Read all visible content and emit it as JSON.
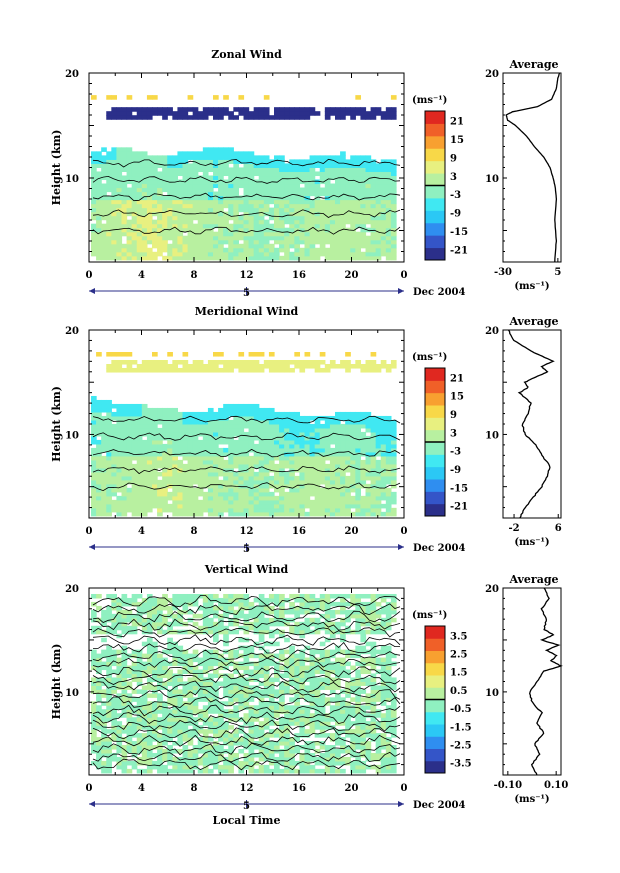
{
  "chart_data": [
    {
      "type": "heatmap",
      "title": "Zonal Wind",
      "ylabel": "Height (km)",
      "xlabel": "",
      "x_ticks": [
        "0",
        "4",
        "8",
        "12",
        "16",
        "20",
        "0"
      ],
      "day_label": "5",
      "month_label": "Dec 2004",
      "xlim": [
        0,
        24
      ],
      "ylim": [
        2,
        20
      ],
      "y_ticks": [
        "10",
        "20"
      ],
      "colorbar": {
        "unit_label": "(ms⁻¹)",
        "ticks": [
          "21",
          "15",
          "9",
          "3",
          "-3",
          "-9",
          "-15",
          "-21"
        ],
        "range": [
          -24,
          24
        ],
        "colors": [
          "#2b2f8a",
          "#3455c8",
          "#2f8ef0",
          "#2bc8f5",
          "#40e8f2",
          "#8ff0c0",
          "#b8f0a0",
          "#e8f080",
          "#f8d848",
          "#f8a030",
          "#f06028",
          "#e02820"
        ]
      },
      "field_description": {
        "data_top_km": [
          12.6,
          13.0,
          12.4,
          12.0,
          12.8,
          13.1,
          12.5,
          12.2,
          11.8,
          12.1,
          12.4,
          12.0,
          11.6
        ],
        "values_low": [
          1,
          3,
          5,
          4,
          2,
          1,
          0,
          -1,
          0,
          1,
          2,
          1,
          0
        ],
        "values_mid": [
          -3,
          -2,
          -1,
          -2,
          -3,
          -4,
          -3,
          -2,
          -3,
          -4,
          -3,
          -2,
          -3
        ],
        "jet_level_km": 16.2,
        "jet_value": -22
      },
      "average_profile": {
        "title": "Average",
        "x_ticks": [
          "-30",
          "5"
        ],
        "xlim": [
          -30,
          7
        ],
        "unit_label": "(ms⁻¹)",
        "y_ticks": [
          "10",
          "20"
        ],
        "height_km": [
          2,
          4,
          6,
          8,
          9,
          10,
          11,
          12,
          13,
          14,
          15,
          15.5,
          16,
          16.3,
          16.8,
          17.5,
          18.5,
          19.5,
          20
        ],
        "value": [
          3,
          4,
          3,
          4,
          3.5,
          2,
          0,
          -4,
          -10,
          -15,
          -22,
          -27,
          -28,
          -24,
          -8,
          1,
          4,
          5,
          6
        ]
      }
    },
    {
      "type": "heatmap",
      "title": "Meridional Wind",
      "ylabel": "Height (km)",
      "xlabel": "",
      "x_ticks": [
        "0",
        "4",
        "8",
        "12",
        "16",
        "20",
        "0"
      ],
      "day_label": "5",
      "month_label": "Dec 2004",
      "xlim": [
        0,
        24
      ],
      "ylim": [
        2,
        20
      ],
      "y_ticks": [
        "10",
        "20"
      ],
      "colorbar": {
        "unit_label": "(ms⁻¹)",
        "ticks": [
          "21",
          "15",
          "9",
          "3",
          "-3",
          "-9",
          "-15",
          "-21"
        ],
        "range": [
          -24,
          24
        ],
        "colors": [
          "#2b2f8a",
          "#3455c8",
          "#2f8ef0",
          "#2bc8f5",
          "#40e8f2",
          "#8ff0c0",
          "#b8f0a0",
          "#e8f080",
          "#f8d848",
          "#f8a030",
          "#f06028",
          "#e02820"
        ]
      },
      "field_description": {
        "data_top_km": [
          13.5,
          13.0,
          12.8,
          12.5,
          12.0,
          12.6,
          13.1,
          12.4,
          12.0,
          11.8,
          12.2,
          12.0,
          11.5
        ],
        "values_low": [
          0,
          1,
          2,
          3,
          2,
          1,
          0,
          0,
          1,
          2,
          1,
          0,
          -1
        ],
        "values_mid": [
          -4,
          -3,
          -2,
          -1,
          -3,
          -4,
          -2,
          -3,
          -5,
          -4,
          -3,
          -4,
          -5
        ],
        "jet_level_km": 16.6,
        "jet_value": 6
      },
      "average_profile": {
        "title": "Average",
        "x_ticks": [
          "-2",
          "6"
        ],
        "xlim": [
          -4,
          6.5
        ],
        "unit_label": "(ms⁻¹)",
        "y_ticks": [
          "10",
          "20"
        ],
        "height_km": [
          2,
          3,
          4,
          5,
          6,
          7,
          8,
          9,
          10,
          11,
          12,
          13,
          14,
          14.5,
          15,
          15.5,
          16,
          16.5,
          17,
          17.5,
          18,
          19,
          20
        ],
        "value": [
          -1,
          0,
          1.5,
          3,
          4,
          4.5,
          3,
          2,
          0,
          -0.5,
          0.5,
          1,
          -1,
          0.5,
          0,
          2,
          4,
          3,
          5,
          3,
          1,
          -2,
          -3
        ]
      }
    },
    {
      "type": "heatmap",
      "title": "Vertical Wind",
      "ylabel": "Height (km)",
      "xlabel": "Local Time",
      "x_ticks": [
        "0",
        "4",
        "8",
        "12",
        "16",
        "20",
        "0"
      ],
      "day_label": "5",
      "month_label": "Dec 2004",
      "xlim": [
        0,
        24
      ],
      "ylim": [
        2,
        20
      ],
      "y_ticks": [
        "10",
        "20"
      ],
      "colorbar": {
        "unit_label": "(ms⁻¹)",
        "ticks": [
          "3.5",
          "2.5",
          "1.5",
          "0.5",
          "-0.5",
          "-1.5",
          "-2.5",
          "-3.5"
        ],
        "range": [
          -4,
          4
        ],
        "colors": [
          "#2b2f8a",
          "#3455c8",
          "#2f8ef0",
          "#2bc8f5",
          "#40e8f2",
          "#8ff0c0",
          "#b8f0a0",
          "#e8f080",
          "#f8d848",
          "#f8a030",
          "#f06028",
          "#e02820"
        ]
      },
      "field_description": {
        "data_top_km": [
          19.5,
          19.5,
          19.5,
          19.5,
          19.5,
          19.5,
          19.5,
          19.5,
          19.5,
          19.5,
          19.5,
          19.5,
          19.5
        ],
        "values_low": [
          0.2,
          -0.3,
          0.4,
          -0.2,
          0.1,
          0.3,
          -0.4,
          0.2,
          -0.1,
          0.3,
          0.1,
          -0.3,
          0.2
        ],
        "values_mid": [
          0.3,
          0.1,
          -0.2,
          0.2,
          0.4,
          0.1,
          -0.1,
          0.3,
          0.2,
          -0.2,
          0.1,
          0.3,
          0.2
        ],
        "jet_level_km": 0,
        "jet_value": 0
      },
      "average_profile": {
        "title": "Average",
        "x_ticks": [
          "-0.10",
          "0.10"
        ],
        "xlim": [
          -0.12,
          0.12
        ],
        "unit_label": "(ms⁻¹)",
        "y_ticks": [
          "10",
          "20"
        ],
        "height_km": [
          2,
          3,
          4,
          5,
          6,
          7,
          8,
          9,
          10,
          11,
          12,
          12.5,
          13,
          13.5,
          14,
          14.5,
          15,
          15.5,
          16,
          17,
          18,
          19,
          20
        ],
        "value": [
          0.02,
          0.0,
          0.03,
          0.01,
          0.05,
          0.02,
          0.04,
          0.0,
          -0.01,
          0.02,
          0.05,
          0.12,
          0.08,
          0.1,
          0.06,
          0.11,
          0.04,
          0.09,
          0.05,
          0.06,
          0.04,
          0.07,
          0.05
        ]
      }
    }
  ]
}
